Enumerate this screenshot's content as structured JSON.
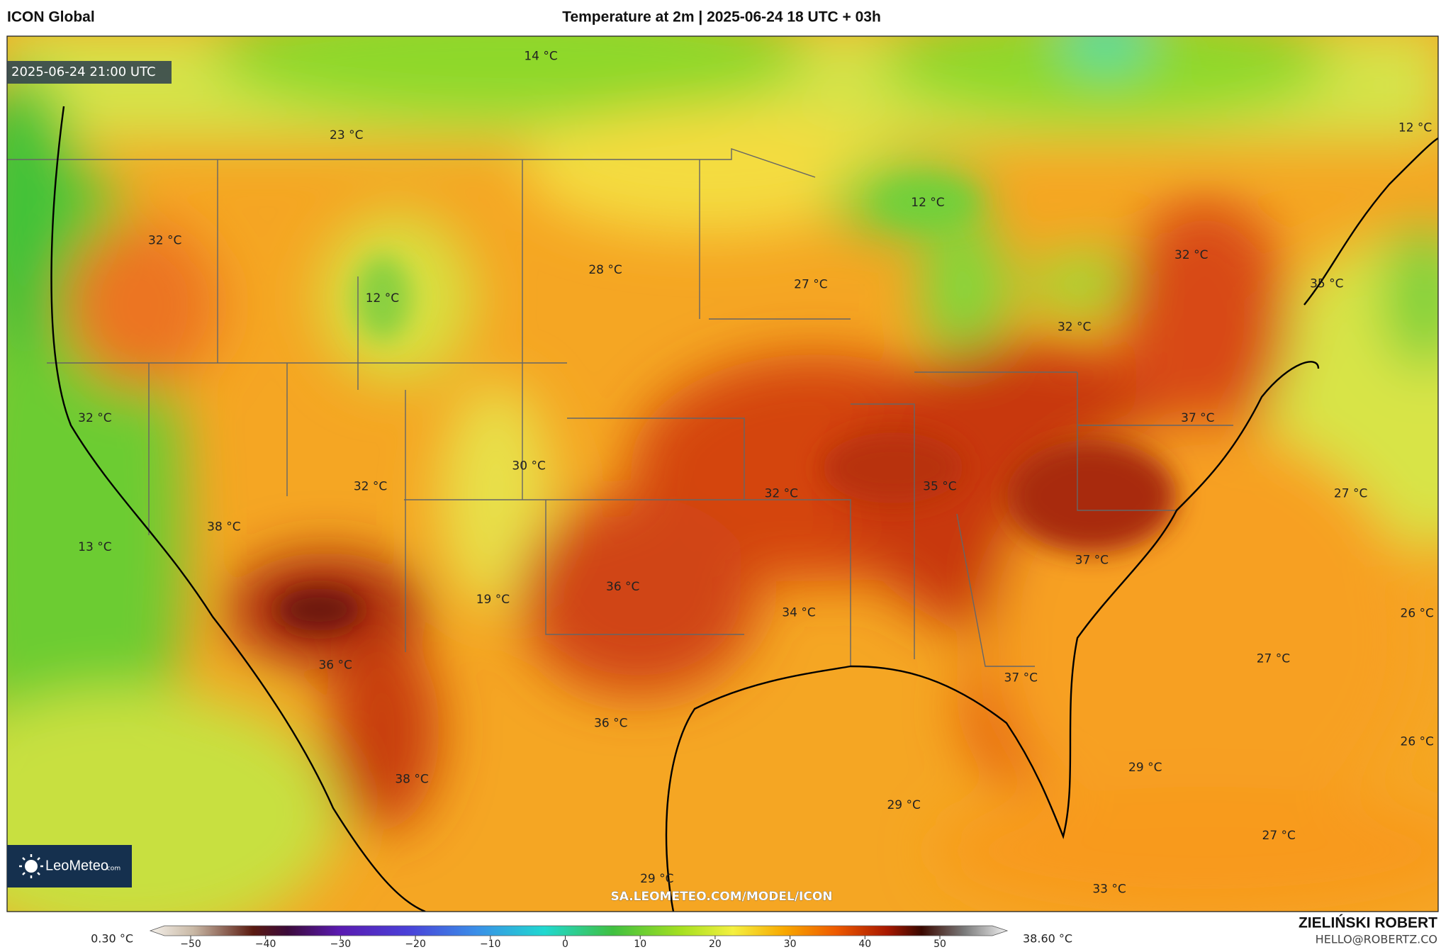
{
  "header": {
    "model": "ICON Global",
    "title": "Temperature at 2m | 2025-06-24 18 UTC + 03h"
  },
  "map": {
    "valid_time": "2025-06-24 21:00 UTC",
    "url": "SA.LEOMETEO.COM/MODEL/ICON",
    "logo": "LeoMeteo",
    "logo_suffix": ".com",
    "labels": [
      "14 °C",
      "23 °C",
      "12 °C",
      "32 °C",
      "12 °C",
      "28 °C",
      "27 °C",
      "32 °C",
      "35 °C",
      "12 °C",
      "32 °C",
      "32 °C",
      "37 °C",
      "30 °C",
      "32 °C",
      "35 °C",
      "32 °C",
      "27 °C",
      "38 °C",
      "13 °C",
      "37 °C",
      "36 °C",
      "19 °C",
      "34 °C",
      "26 °C",
      "27 °C",
      "36 °C",
      "37 °C",
      "36 °C",
      "26 °C",
      "29 °C",
      "38 °C",
      "29 °C",
      "27 °C",
      "29 °C",
      "33 °C"
    ]
  },
  "colorbar": {
    "min_label": "0.30 °C",
    "max_label": "38.60 °C",
    "ticks": [
      {
        "value": -50,
        "label": "−50"
      },
      {
        "value": -40,
        "label": "−40"
      },
      {
        "value": -30,
        "label": "−30"
      },
      {
        "value": -20,
        "label": "−20"
      },
      {
        "value": -10,
        "label": "−10"
      },
      0,
      10,
      20,
      30,
      40,
      50
    ]
  },
  "credit": {
    "author": "ZIELIŃSKI ROBERT",
    "email": "HELLO@ROBERTZ.CO"
  }
}
